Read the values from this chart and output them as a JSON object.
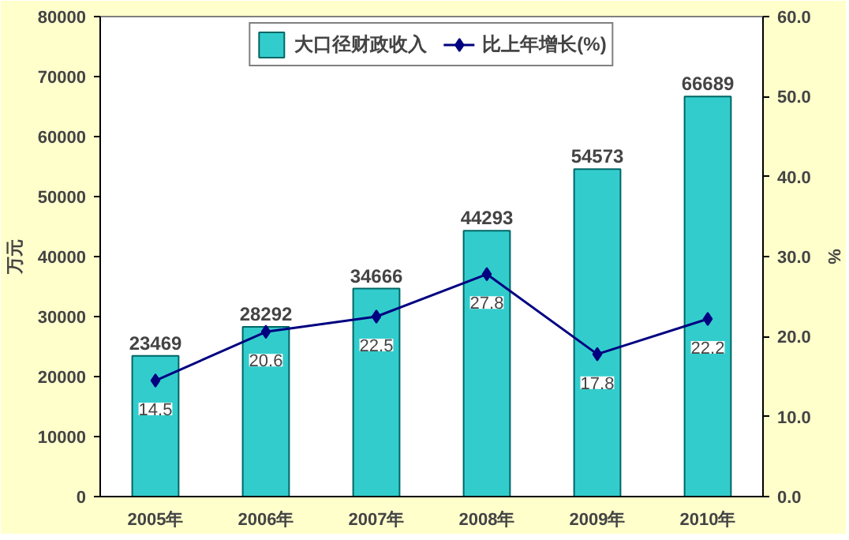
{
  "chart_data": {
    "type": "bar",
    "ylabel": "万元",
    "y2label": "%",
    "categories": [
      "2005年",
      "2006年",
      "2007年",
      "2008年",
      "2009年",
      "2010年"
    ],
    "series": [
      {
        "name": "大口径财政收入",
        "color": "#33cccc",
        "values": [
          23469,
          28292,
          34666,
          44293,
          54573,
          66689
        ]
      },
      {
        "name": "比上年增长(%)",
        "type": "line",
        "axis": "y2",
        "color": "#000080",
        "marker": "diamond",
        "values": [
          14.5,
          20.6,
          22.5,
          27.8,
          17.8,
          22.2
        ]
      }
    ],
    "ylim": [
      0,
      80000
    ],
    "yticks": [
      0,
      10000,
      20000,
      30000,
      40000,
      50000,
      60000,
      70000,
      80000
    ],
    "y2lim": [
      0,
      60
    ],
    "y2ticks": [
      {
        "value": 0,
        "label": "0.0"
      },
      {
        "value": 10,
        "label": "10.0"
      },
      {
        "value": 20,
        "label": "20.0"
      },
      {
        "value": 30,
        "label": "30.0"
      },
      {
        "value": 40,
        "label": "40.0"
      },
      {
        "value": 50,
        "label": "50.0"
      },
      {
        "value": 60,
        "label": "60.0"
      }
    ],
    "data_labels": true,
    "legend": "top",
    "grid": false
  }
}
